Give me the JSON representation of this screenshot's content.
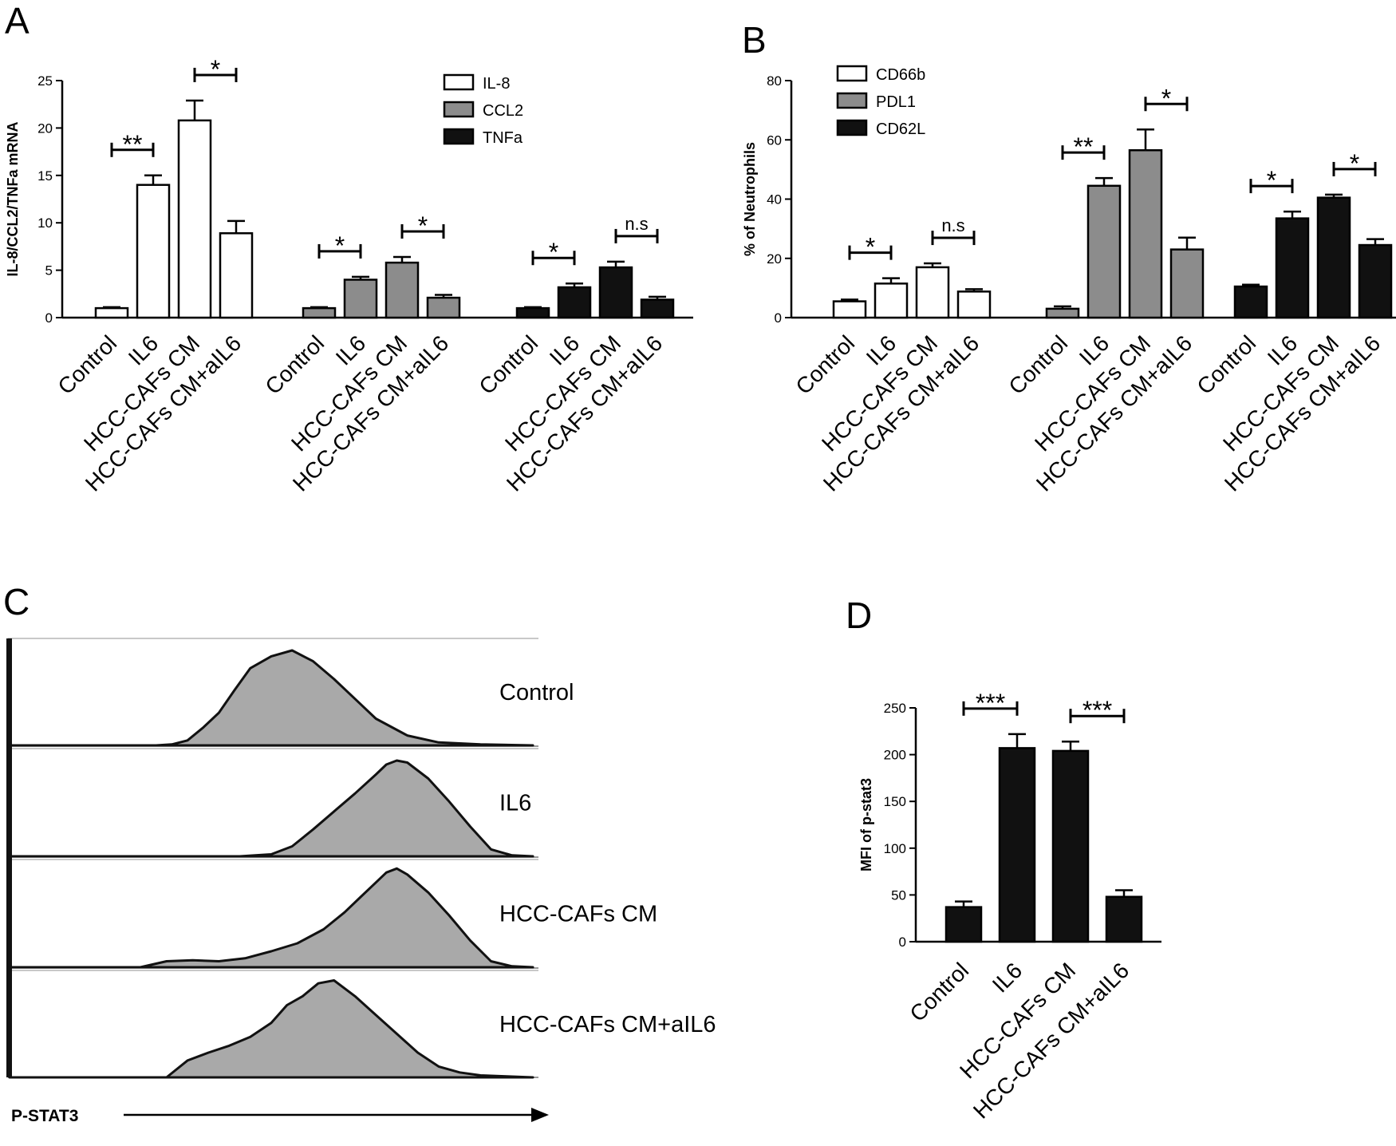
{
  "chart_data": [
    {
      "panel": "A",
      "type": "bar",
      "ylabel": "IL-8/CCL2/TNFa mRNA",
      "ylim": [
        0,
        25
      ],
      "yticks": [
        0,
        5,
        10,
        15,
        20,
        25
      ],
      "legend": {
        "position": "top-right",
        "entries": [
          "IL-8",
          "CCL2",
          "TNFa"
        ]
      },
      "categories": [
        "Control",
        "IL6",
        "HCC-CAFs CM",
        "HCC-CAFs CM+aIL6"
      ],
      "series": [
        {
          "name": "IL-8",
          "color": "#ffffff",
          "values": [
            1.0,
            14.0,
            20.8,
            8.9
          ],
          "errors": [
            0.1,
            1.0,
            2.1,
            1.3
          ]
        },
        {
          "name": "CCL2",
          "color": "#8c8c8c",
          "values": [
            1.0,
            4.0,
            5.8,
            2.1
          ],
          "errors": [
            0.1,
            0.3,
            0.6,
            0.3
          ]
        },
        {
          "name": "TNFa",
          "color": "#111111",
          "values": [
            1.0,
            3.2,
            5.3,
            1.9
          ],
          "errors": [
            0.1,
            0.4,
            0.6,
            0.3
          ]
        }
      ],
      "significance": [
        {
          "group": 0,
          "from": 0,
          "to": 1,
          "label": "**"
        },
        {
          "group": 0,
          "from": 2,
          "to": 3,
          "label": "*"
        },
        {
          "group": 1,
          "from": 0,
          "to": 1,
          "label": "*"
        },
        {
          "group": 1,
          "from": 2,
          "to": 3,
          "label": "*"
        },
        {
          "group": 2,
          "from": 0,
          "to": 1,
          "label": "*"
        },
        {
          "group": 2,
          "from": 2,
          "to": 3,
          "label": "n.s"
        }
      ]
    },
    {
      "panel": "B",
      "type": "bar",
      "ylabel": "% of Neutrophils",
      "ylim": [
        0,
        80
      ],
      "yticks": [
        0,
        20,
        40,
        60,
        80
      ],
      "legend": {
        "position": "top-left",
        "entries": [
          "CD66b",
          "PDL1",
          "CD62L"
        ]
      },
      "categories": [
        "Control",
        "IL6",
        "HCC-CAFs CM",
        "HCC-CAFs CM+aIL6"
      ],
      "series": [
        {
          "name": "CD66b",
          "color": "#ffffff",
          "values": [
            5.5,
            11.5,
            17.0,
            8.8
          ],
          "errors": [
            0.6,
            1.8,
            1.3,
            0.8
          ]
        },
        {
          "name": "PDL1",
          "color": "#8c8c8c",
          "values": [
            3.0,
            44.5,
            56.5,
            23.0
          ],
          "errors": [
            0.8,
            2.6,
            7.0,
            4.0
          ]
        },
        {
          "name": "CD62L",
          "color": "#111111",
          "values": [
            10.5,
            33.5,
            40.5,
            24.5
          ],
          "errors": [
            0.6,
            2.3,
            1.0,
            2.0
          ]
        }
      ],
      "significance": [
        {
          "group": 0,
          "from": 0,
          "to": 1,
          "label": "*"
        },
        {
          "group": 0,
          "from": 2,
          "to": 3,
          "label": "n.s"
        },
        {
          "group": 1,
          "from": 0,
          "to": 1,
          "label": "**"
        },
        {
          "group": 1,
          "from": 2,
          "to": 3,
          "label": "*"
        },
        {
          "group": 2,
          "from": 0,
          "to": 1,
          "label": "*"
        },
        {
          "group": 2,
          "from": 2,
          "to": 3,
          "label": "*"
        }
      ]
    },
    {
      "panel": "C",
      "type": "area",
      "xlabel": "P-STAT3",
      "rows": [
        {
          "label": "Control",
          "x": [
            0,
            0.04,
            0.06,
            0.1,
            0.14,
            0.18,
            0.22,
            0.25,
            0.28,
            0.31,
            0.34,
            0.37,
            0.4,
            0.43,
            0.46,
            0.5,
            0.54,
            0.58,
            0.62,
            0.66,
            0.7,
            0.76,
            0.82,
            0.9,
            1.0
          ],
          "y": [
            0,
            0,
            0,
            0,
            0,
            0,
            0,
            0,
            0,
            0.01,
            0.05,
            0.18,
            0.33,
            0.56,
            0.78,
            0.9,
            0.96,
            0.85,
            0.67,
            0.47,
            0.27,
            0.1,
            0.03,
            0.01,
            0
          ]
        },
        {
          "label": "IL6",
          "x": [
            0,
            0.3,
            0.38,
            0.44,
            0.5,
            0.54,
            0.58,
            0.62,
            0.66,
            0.7,
            0.72,
            0.74,
            0.76,
            0.8,
            0.84,
            0.88,
            0.92,
            0.96,
            1.0
          ],
          "y": [
            0,
            0,
            0,
            0,
            0.02,
            0.1,
            0.27,
            0.45,
            0.63,
            0.82,
            0.92,
            0.96,
            0.94,
            0.78,
            0.55,
            0.3,
            0.07,
            0.01,
            0
          ]
        },
        {
          "label": "HCC-CAFs CM",
          "x": [
            0,
            0.2,
            0.25,
            0.3,
            0.35,
            0.4,
            0.45,
            0.5,
            0.55,
            0.6,
            0.64,
            0.67,
            0.7,
            0.72,
            0.74,
            0.76,
            0.8,
            0.84,
            0.88,
            0.92,
            0.96,
            1.0
          ],
          "y": [
            0,
            0,
            0,
            0.06,
            0.07,
            0.06,
            0.09,
            0.16,
            0.24,
            0.38,
            0.55,
            0.7,
            0.85,
            0.95,
            0.99,
            0.93,
            0.75,
            0.52,
            0.27,
            0.06,
            0.01,
            0
          ]
        },
        {
          "label": "HCC-CAFs CM+aIL6",
          "x": [
            0,
            0.26,
            0.3,
            0.34,
            0.38,
            0.42,
            0.46,
            0.5,
            0.53,
            0.56,
            0.59,
            0.62,
            0.66,
            0.7,
            0.74,
            0.78,
            0.82,
            0.86,
            0.9,
            0.95,
            1.0
          ],
          "y": [
            0,
            0,
            0,
            0.17,
            0.25,
            0.32,
            0.41,
            0.55,
            0.73,
            0.82,
            0.95,
            0.98,
            0.82,
            0.63,
            0.44,
            0.25,
            0.11,
            0.05,
            0.02,
            0.01,
            0
          ]
        }
      ]
    },
    {
      "panel": "D",
      "type": "bar",
      "ylabel": "MFI of p-stat3",
      "ylim": [
        0,
        250
      ],
      "yticks": [
        0,
        50,
        100,
        150,
        200,
        250
      ],
      "categories": [
        "Control",
        "IL6",
        "HCC-CAFs CM",
        "HCC-CAFs CM+aIL6"
      ],
      "series": [
        {
          "name": "MFI of p-stat3",
          "color": "#111111",
          "values": [
            37,
            207,
            204,
            48
          ],
          "errors": [
            6,
            15,
            10,
            7
          ]
        }
      ],
      "significance": [
        {
          "group": 0,
          "from": 0,
          "to": 1,
          "label": "***"
        },
        {
          "group": 0,
          "from": 2,
          "to": 3,
          "label": "***"
        }
      ]
    }
  ]
}
